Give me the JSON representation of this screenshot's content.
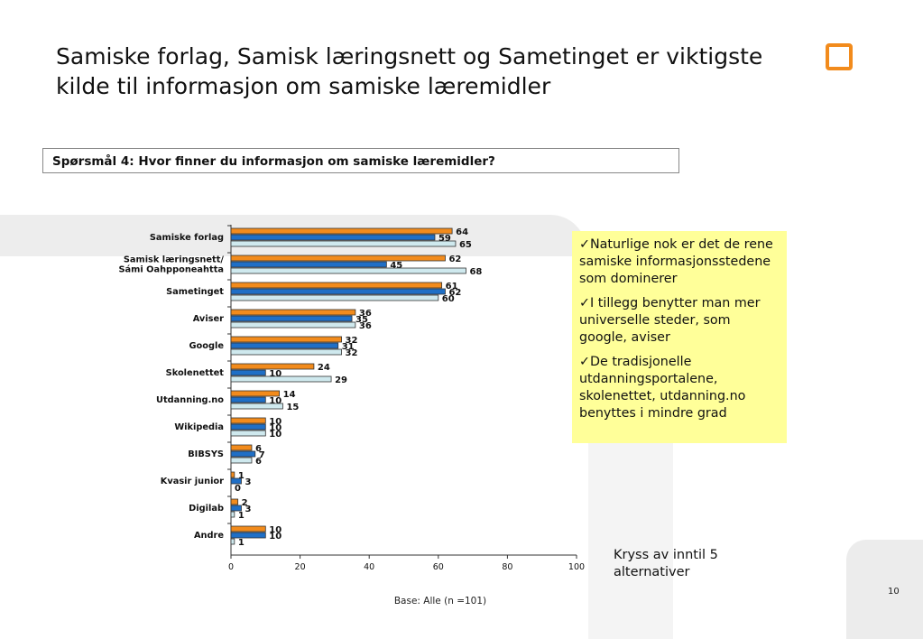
{
  "slide": {
    "title": "Samiske forlag, Samisk læringsnett og Sametinget er viktigste kilde til informasjon om samiske læremidler",
    "question": "Spørsmål 4: Hvor finner du informasjon om samiske læremidler?",
    "callout": [
      "✓Naturlige nok er det de rene samiske informasjonsstedene som dominerer",
      "✓I tillegg benytter man mer universelle steder, som google, aviser",
      "✓De tradisjonelle utdanningsportalene, skolenettet, utdanning.no benyttes i mindre grad"
    ],
    "note": "Kryss av inntil 5 alternativer",
    "base": "Base: Alle (n =101)",
    "page_number": "10",
    "accent_color": "#f28b1c",
    "callout_color": "#ffff99"
  },
  "chart_data": {
    "type": "bar",
    "orientation": "horizontal",
    "categories": [
      [
        "Samiske forlag"
      ],
      [
        "Samisk læringsnett/",
        "Sámi Oahpponeahtta"
      ],
      [
        "Sametinget"
      ],
      [
        "Aviser"
      ],
      [
        "Google"
      ],
      [
        "Skolenettet"
      ],
      [
        "Utdanning.no"
      ],
      [
        "Wikipedia"
      ],
      [
        "BIBSYS"
      ],
      [
        "Kvasir junior"
      ],
      [
        "Digilab"
      ],
      [
        "Andre"
      ]
    ],
    "series": [
      {
        "color": "#f28b1c",
        "values": [
          64,
          62,
          61,
          36,
          32,
          24,
          14,
          10,
          6,
          1,
          2,
          10
        ]
      },
      {
        "color": "#1f6fc6",
        "values": [
          59,
          45,
          62,
          35,
          31,
          10,
          10,
          10,
          7,
          3,
          3,
          10
        ]
      },
      {
        "color": "#cfe9ee",
        "values": [
          65,
          68,
          60,
          36,
          32,
          29,
          15,
          10,
          6,
          0,
          1,
          1
        ]
      }
    ],
    "xlim": [
      0,
      100
    ],
    "xticks": [
      "0",
      "20",
      "40",
      "60",
      "80",
      "100"
    ],
    "grid": false,
    "legend": "none"
  }
}
